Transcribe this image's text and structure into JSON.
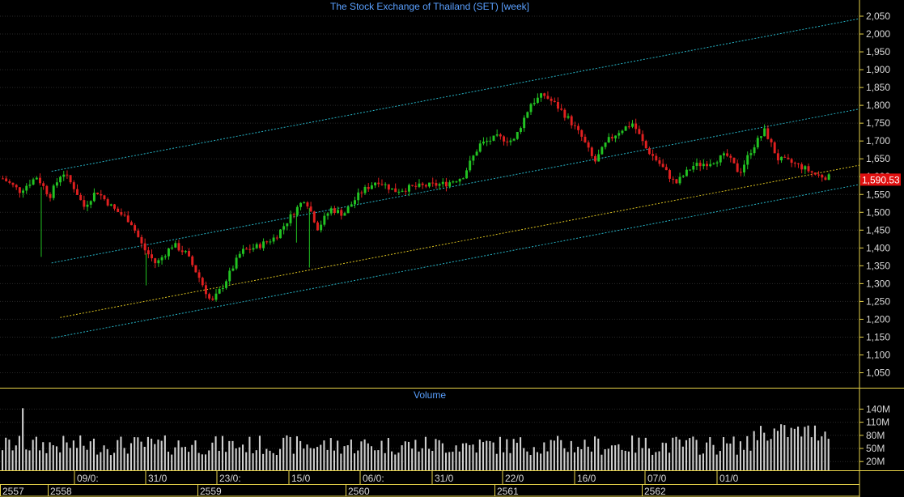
{
  "chart_data": {
    "type": "candlestick",
    "title": "The Stock Exchange of Thailand (SET) [week]",
    "price_axis": {
      "ylim": [
        1010,
        2060
      ],
      "ticks": [
        "2,050",
        "2,000",
        "1,950",
        "1,900",
        "1,850",
        "1,800",
        "1,750",
        "1,700",
        "1,650",
        "1,600",
        "1,550",
        "1,500",
        "1,450",
        "1,400",
        "1,350",
        "1,300",
        "1,250",
        "1,200",
        "1,150",
        "1,100",
        "1,050"
      ],
      "tick_values": [
        2050,
        2000,
        1950,
        1900,
        1850,
        1800,
        1750,
        1700,
        1650,
        1600,
        1550,
        1500,
        1450,
        1400,
        1350,
        1300,
        1250,
        1200,
        1150,
        1100,
        1050
      ]
    },
    "last_price": "1,590.53",
    "last_value": 1590.53,
    "grid": true,
    "colors": {
      "up": "#22c322",
      "down": "#e02020",
      "channel": "#27b6c8",
      "midline": "#d8c020",
      "axis": "#e8d44a",
      "title": "#5aa0ff",
      "price_tag": "#e01010"
    },
    "trend_channel": {
      "upper": [
        [
          0.06,
          1615
        ],
        [
          1.0,
          2043
        ]
      ],
      "middle": [
        [
          0.06,
          1358
        ],
        [
          1.0,
          1790
        ]
      ],
      "lower": [
        [
          0.06,
          1147
        ],
        [
          1.0,
          1578
        ]
      ],
      "yellow": [
        [
          0.07,
          1205
        ],
        [
          1.0,
          1632
        ]
      ]
    },
    "price_path": [
      [
        0.0,
        1595
      ],
      [
        0.02,
        1560
      ],
      [
        0.04,
        1600
      ],
      [
        0.055,
        1545
      ],
      [
        0.07,
        1615
      ],
      [
        0.085,
        1565
      ],
      [
        0.095,
        1515
      ],
      [
        0.11,
        1560
      ],
      [
        0.13,
        1510
      ],
      [
        0.15,
        1475
      ],
      [
        0.165,
        1400
      ],
      [
        0.18,
        1355
      ],
      [
        0.2,
        1410
      ],
      [
        0.215,
        1385
      ],
      [
        0.23,
        1320
      ],
      [
        0.245,
        1245
      ],
      [
        0.26,
        1300
      ],
      [
        0.28,
        1390
      ],
      [
        0.3,
        1405
      ],
      [
        0.32,
        1430
      ],
      [
        0.34,
        1495
      ],
      [
        0.355,
        1540
      ],
      [
        0.37,
        1455
      ],
      [
        0.385,
        1510
      ],
      [
        0.4,
        1495
      ],
      [
        0.42,
        1555
      ],
      [
        0.44,
        1590
      ],
      [
        0.46,
        1560
      ],
      [
        0.48,
        1570
      ],
      [
        0.5,
        1575
      ],
      [
        0.52,
        1580
      ],
      [
        0.54,
        1600
      ],
      [
        0.56,
        1690
      ],
      [
        0.58,
        1710
      ],
      [
        0.6,
        1700
      ],
      [
        0.62,
        1805
      ],
      [
        0.635,
        1830
      ],
      [
        0.65,
        1800
      ],
      [
        0.665,
        1760
      ],
      [
        0.68,
        1710
      ],
      [
        0.695,
        1640
      ],
      [
        0.71,
        1700
      ],
      [
        0.725,
        1730
      ],
      [
        0.74,
        1750
      ],
      [
        0.755,
        1680
      ],
      [
        0.77,
        1640
      ],
      [
        0.79,
        1580
      ],
      [
        0.81,
        1630
      ],
      [
        0.83,
        1640
      ],
      [
        0.85,
        1660
      ],
      [
        0.865,
        1610
      ],
      [
        0.88,
        1680
      ],
      [
        0.895,
        1730
      ],
      [
        0.91,
        1650
      ],
      [
        0.925,
        1640
      ],
      [
        0.94,
        1625
      ],
      [
        0.955,
        1605
      ],
      [
        0.97,
        1598
      ]
    ],
    "volume_panel": {
      "title": "Volume",
      "ticks": [
        "140M",
        "110M",
        "80M",
        "50M",
        "20M"
      ],
      "tick_values": [
        140,
        110,
        80,
        50,
        20
      ],
      "ylim": [
        0,
        150
      ]
    },
    "date_labels_top": [
      "09/0:",
      "31/0",
      "23/0:",
      "15/0",
      "06/0:",
      "31/0",
      "22/0",
      "16/0",
      "07/0",
      "01/0"
    ],
    "year_labels": [
      "2557",
      "2558",
      "2559",
      "2560",
      "2561",
      "2562"
    ]
  }
}
